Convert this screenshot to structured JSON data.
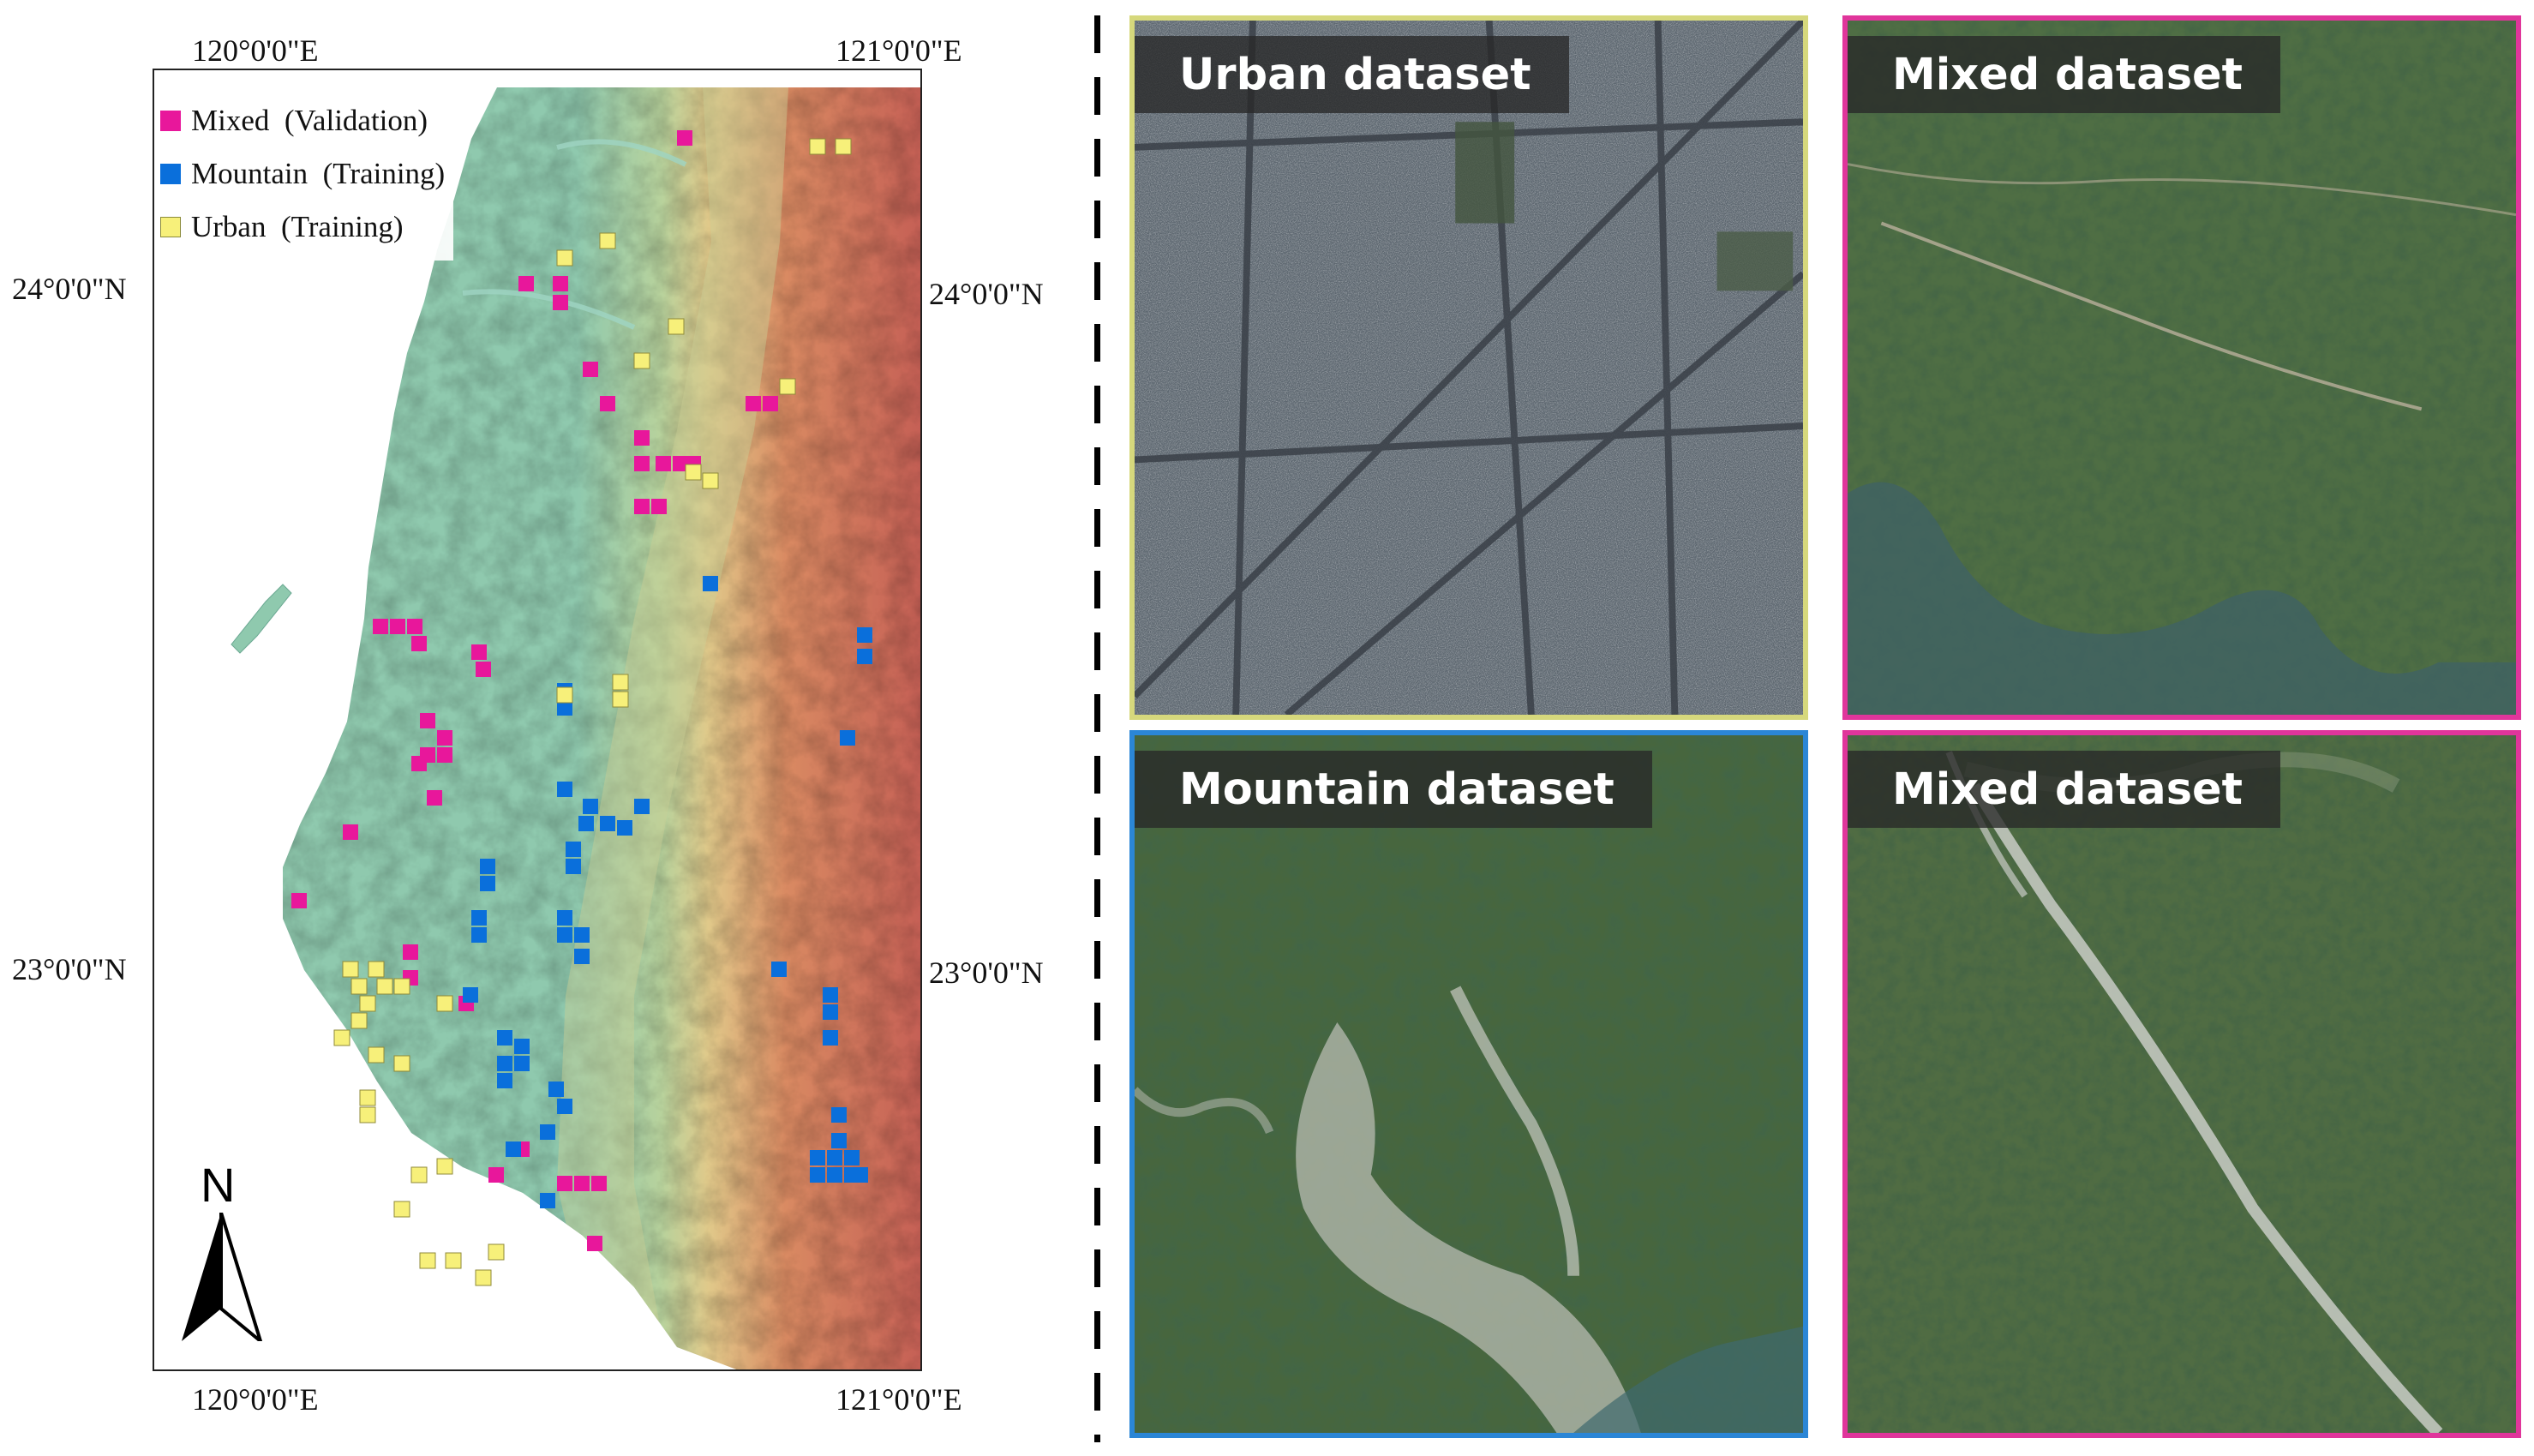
{
  "map": {
    "coordinates": {
      "top_left_lon": "120°0'0\"E",
      "top_right_lon": "121°0'0\"E",
      "bottom_left_lon": "120°0'0\"E",
      "bottom_right_lon": "121°0'0\"E",
      "left_upper_lat": "24°0'0\"N",
      "right_upper_lat": "24°0'0\"N",
      "left_lower_lat": "23°0'0\"N",
      "right_lower_lat": "23°0'0\"N"
    },
    "north_label": "N",
    "legend": [
      {
        "label": "Mixed  (Validation)",
        "color": "#e8179b"
      },
      {
        "label": "Mountain  (Training)",
        "color": "#0a6fdb"
      },
      {
        "label": "Urban  (Training)",
        "color": "#f7f07a"
      }
    ],
    "colors": {
      "plain": "#8fc9ae",
      "foothill": "#c8cf8f",
      "mountain": "#d98a62",
      "high_mountain": "#c55f55",
      "mixed": "#e8179b",
      "mountain_sample": "#0a6fdb",
      "urban": "#f7f07a"
    }
  },
  "panels": [
    {
      "title": "Urban dataset",
      "border_color": "#d6d87c",
      "terrain": "urban"
    },
    {
      "title": "Mixed dataset",
      "border_color": "#e0359b",
      "terrain": "mixed"
    },
    {
      "title": "Mountain dataset",
      "border_color": "#2b86d6",
      "terrain": "mountain"
    },
    {
      "title": "Mixed dataset",
      "border_color": "#e0359b",
      "terrain": "mixed2"
    }
  ]
}
